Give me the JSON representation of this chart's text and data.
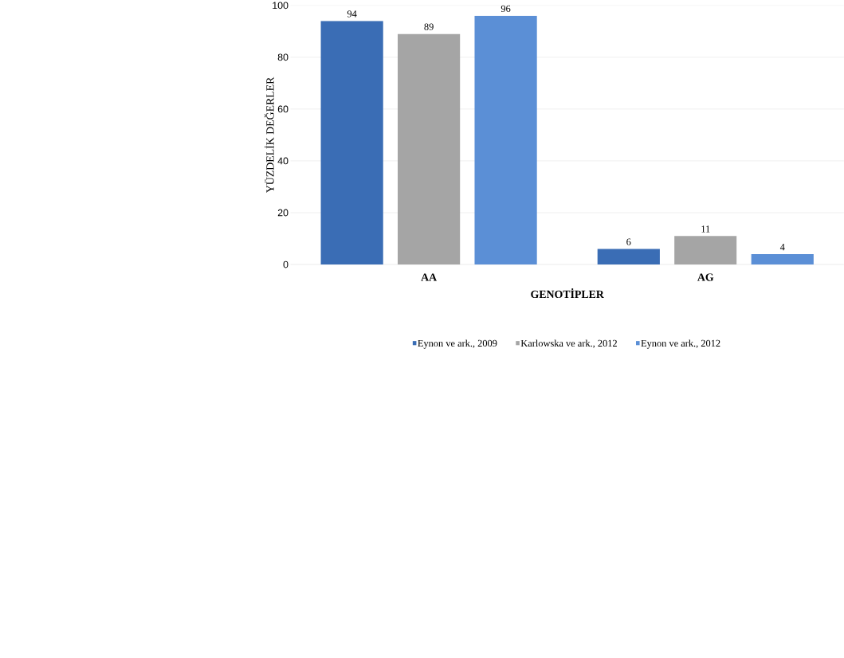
{
  "chart_data": {
    "type": "bar",
    "xlabel": "GENOTİPLER",
    "ylabel": "YÜZDELİK DEĞERLER",
    "categories": [
      "AA",
      "AG"
    ],
    "series": [
      {
        "name": "Eynon ve ark., 2009",
        "color": "#3a6db5",
        "values": [
          94,
          6
        ]
      },
      {
        "name": "Karlowska ve ark., 2012",
        "color": "#a5a5a5",
        "values": [
          89,
          11
        ]
      },
      {
        "name": "Eynon ve ark., 2012",
        "color": "#5b8fd6",
        "values": [
          96,
          4
        ]
      }
    ],
    "ylim": [
      0,
      100
    ],
    "yticks": [
      0,
      20,
      40,
      60,
      80,
      100
    ],
    "grid": "y",
    "legend": "bottom",
    "data_labels": true
  }
}
